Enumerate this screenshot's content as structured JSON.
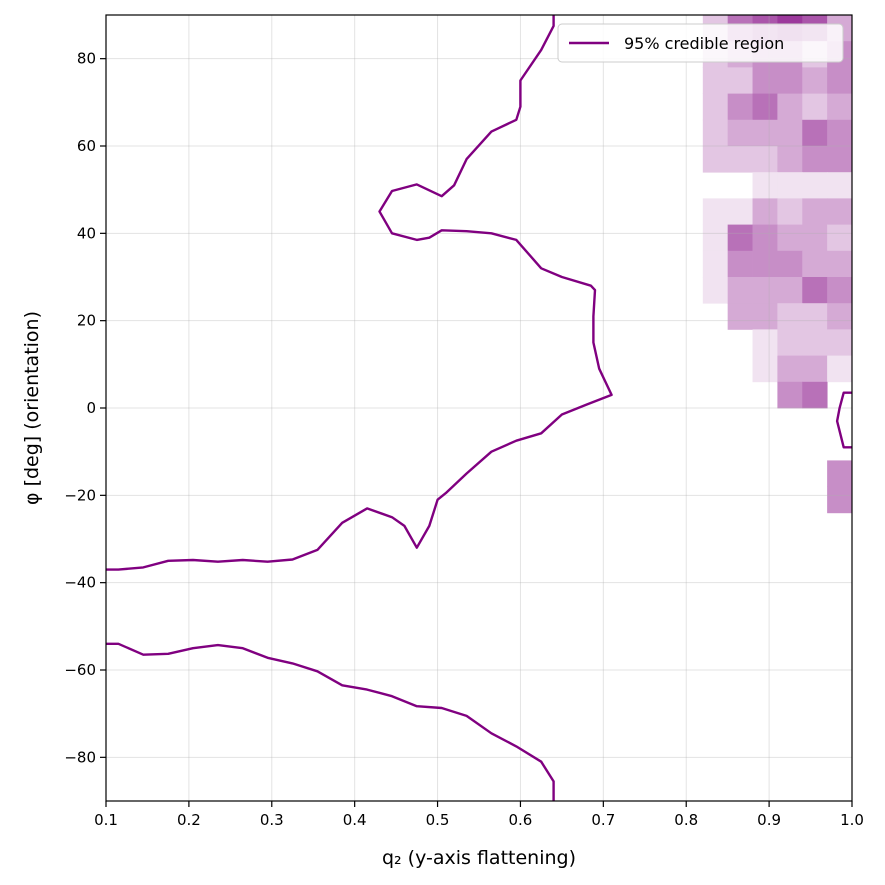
{
  "chart_data": {
    "type": "heatmap",
    "title": "",
    "xlabel": "q₂ (y-axis flattening)",
    "ylabel": "φ [deg] (orientation)",
    "xlim": [
      0.1,
      1.0
    ],
    "ylim": [
      -90,
      90
    ],
    "x_ticks": [
      "0.1",
      "0.2",
      "0.3",
      "0.4",
      "0.5",
      "0.6",
      "0.7",
      "0.8",
      "0.9",
      "1.0"
    ],
    "y_ticks": [
      "−80",
      "−60",
      "−40",
      "−20",
      "0",
      "20",
      "40",
      "60",
      "80"
    ],
    "grid": true,
    "legend": {
      "placement": "top-right",
      "entries": [
        {
          "name": "95% credible region",
          "color": "#800080"
        }
      ]
    },
    "colors": {
      "cmap_high": "#800080",
      "contour": "#800080"
    },
    "bins": {
      "nx": 30,
      "ny": 30
    },
    "density_rows_top_to_bottom": [
      "000000000000000000000000256763",
      "000000000000000000000000234424",
      "000000000000000000000000224434",
      "000000000000000000000000245323",
      "000000000000000000000000233354",
      "000000000000000000000000222344",
      "000000000000000000000000001111",
      "000000000000000000000000113233",
      "000000000000000000000000154332",
      "000000000000000000000000144433",
      "000000000000000000000000133354",
      "000000000000000000000000033223",
      "000000000000000000000000001222",
      "000000000000000000000000001331",
      "000000000000000000000000000450",
      "000000000000000000000000000000",
      "000000000000000000000000000000",
      "000000000000000000000000000004",
      "000000000000000000000000000004",
      "000000000000000000000000000000",
      "000000000000000000000000000000",
      "000000000000000000000000000000",
      "000000000000000000000000000000",
      "000000000000000000000000000000",
      "000000000000000000000000000000",
      "000000000000000000000000000000",
      "000000000000000000000000000000",
      "000000000000000000000000000000",
      "000000000000000000000000000000",
      "000000000000000000000000000000"
    ],
    "density_levels": 9,
    "credible_region_95": [
      [
        0.1,
        -37
      ],
      [
        0.115,
        -37
      ],
      [
        0.145,
        -36.5
      ],
      [
        0.175,
        -35
      ],
      [
        0.205,
        -34.8
      ],
      [
        0.235,
        -35.2
      ],
      [
        0.265,
        -34.8
      ],
      [
        0.295,
        -35.2
      ],
      [
        0.325,
        -34.7
      ],
      [
        0.355,
        -32.5
      ],
      [
        0.385,
        -26.3
      ],
      [
        0.415,
        -23
      ],
      [
        0.445,
        -25
      ],
      [
        0.46,
        -27
      ],
      [
        0.475,
        -32
      ],
      [
        0.49,
        -27
      ],
      [
        0.5,
        -21
      ],
      [
        0.51,
        -19.5
      ],
      [
        0.535,
        -15
      ],
      [
        0.565,
        -10
      ],
      [
        0.595,
        -7.5
      ],
      [
        0.625,
        -5.8
      ],
      [
        0.65,
        -1.5
      ],
      [
        0.68,
        0.8
      ],
      [
        0.71,
        3
      ],
      [
        0.695,
        9
      ],
      [
        0.688,
        15
      ],
      [
        0.688,
        21
      ],
      [
        0.69,
        27
      ],
      [
        0.685,
        28
      ],
      [
        0.65,
        30
      ],
      [
        0.625,
        32
      ],
      [
        0.595,
        38.5
      ],
      [
        0.565,
        40
      ],
      [
        0.535,
        40.5
      ],
      [
        0.505,
        40.7
      ],
      [
        0.49,
        39
      ],
      [
        0.475,
        38.5
      ],
      [
        0.445,
        40
      ],
      [
        0.43,
        45
      ],
      [
        0.445,
        49.7
      ],
      [
        0.475,
        51.2
      ],
      [
        0.505,
        48.5
      ],
      [
        0.52,
        51
      ],
      [
        0.535,
        57
      ],
      [
        0.565,
        63.3
      ],
      [
        0.595,
        66
      ],
      [
        0.6,
        69
      ],
      [
        0.6,
        75
      ],
      [
        0.625,
        82
      ],
      [
        0.64,
        87.5
      ],
      [
        0.64,
        90
      ]
    ],
    "credible_region_95_lower": [
      [
        0.1,
        -54
      ],
      [
        0.115,
        -54
      ],
      [
        0.145,
        -56.5
      ],
      [
        0.175,
        -56.3
      ],
      [
        0.205,
        -55
      ],
      [
        0.235,
        -54.3
      ],
      [
        0.265,
        -55
      ],
      [
        0.295,
        -57.2
      ],
      [
        0.325,
        -58.5
      ],
      [
        0.355,
        -60.3
      ],
      [
        0.385,
        -63.5
      ],
      [
        0.415,
        -64.5
      ],
      [
        0.445,
        -66
      ],
      [
        0.475,
        -68.3
      ],
      [
        0.505,
        -68.7
      ],
      [
        0.535,
        -70.5
      ],
      [
        0.565,
        -74.5
      ],
      [
        0.595,
        -77.5
      ],
      [
        0.625,
        -81
      ],
      [
        0.64,
        -85.5
      ],
      [
        0.64,
        -90
      ]
    ],
    "credible_region_95_right": [
      [
        1.0,
        3.5
      ],
      [
        0.99,
        3.5
      ],
      [
        0.985,
        0
      ],
      [
        0.982,
        -3
      ],
      [
        0.99,
        -9
      ],
      [
        1.0,
        -9
      ]
    ]
  }
}
